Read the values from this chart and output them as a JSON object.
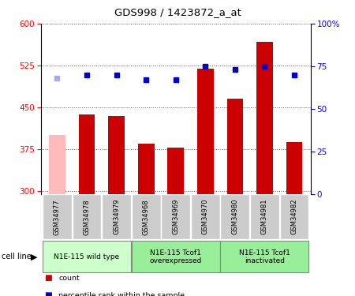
{
  "title": "GDS998 / 1423872_a_at",
  "samples": [
    "GSM34977",
    "GSM34978",
    "GSM34979",
    "GSM34968",
    "GSM34969",
    "GSM34970",
    "GSM34980",
    "GSM34981",
    "GSM34982"
  ],
  "counts": [
    400,
    437,
    435,
    385,
    378,
    520,
    465,
    568,
    388
  ],
  "ranks": [
    68,
    70,
    70,
    67,
    67,
    75,
    73,
    75,
    70
  ],
  "count_absent": [
    true,
    false,
    false,
    false,
    false,
    false,
    false,
    false,
    false
  ],
  "rank_absent": [
    true,
    false,
    false,
    false,
    false,
    false,
    false,
    false,
    false
  ],
  "ylim_left": [
    295,
    600
  ],
  "ylim_right": [
    0,
    100
  ],
  "yticks_left": [
    300,
    375,
    450,
    525,
    600
  ],
  "yticks_right": [
    0,
    25,
    50,
    75,
    100
  ],
  "groups": [
    {
      "label": "N1E-115 wild type",
      "start": 0,
      "end": 3,
      "color": "#ccffcc"
    },
    {
      "label": "N1E-115 Tcof1\noverexpressed",
      "start": 3,
      "end": 6,
      "color": "#99ee99"
    },
    {
      "label": "N1E-115 Tcof1\ninactivated",
      "start": 6,
      "end": 9,
      "color": "#99ee99"
    }
  ],
  "bar_color_normal": "#cc0000",
  "bar_color_absent": "#ffbbbb",
  "rank_color_normal": "#0000cc",
  "rank_color_absent": "#aaaaee",
  "dotted_color": "#555555",
  "bg_sample_box": "#cccccc",
  "bar_width": 0.55
}
